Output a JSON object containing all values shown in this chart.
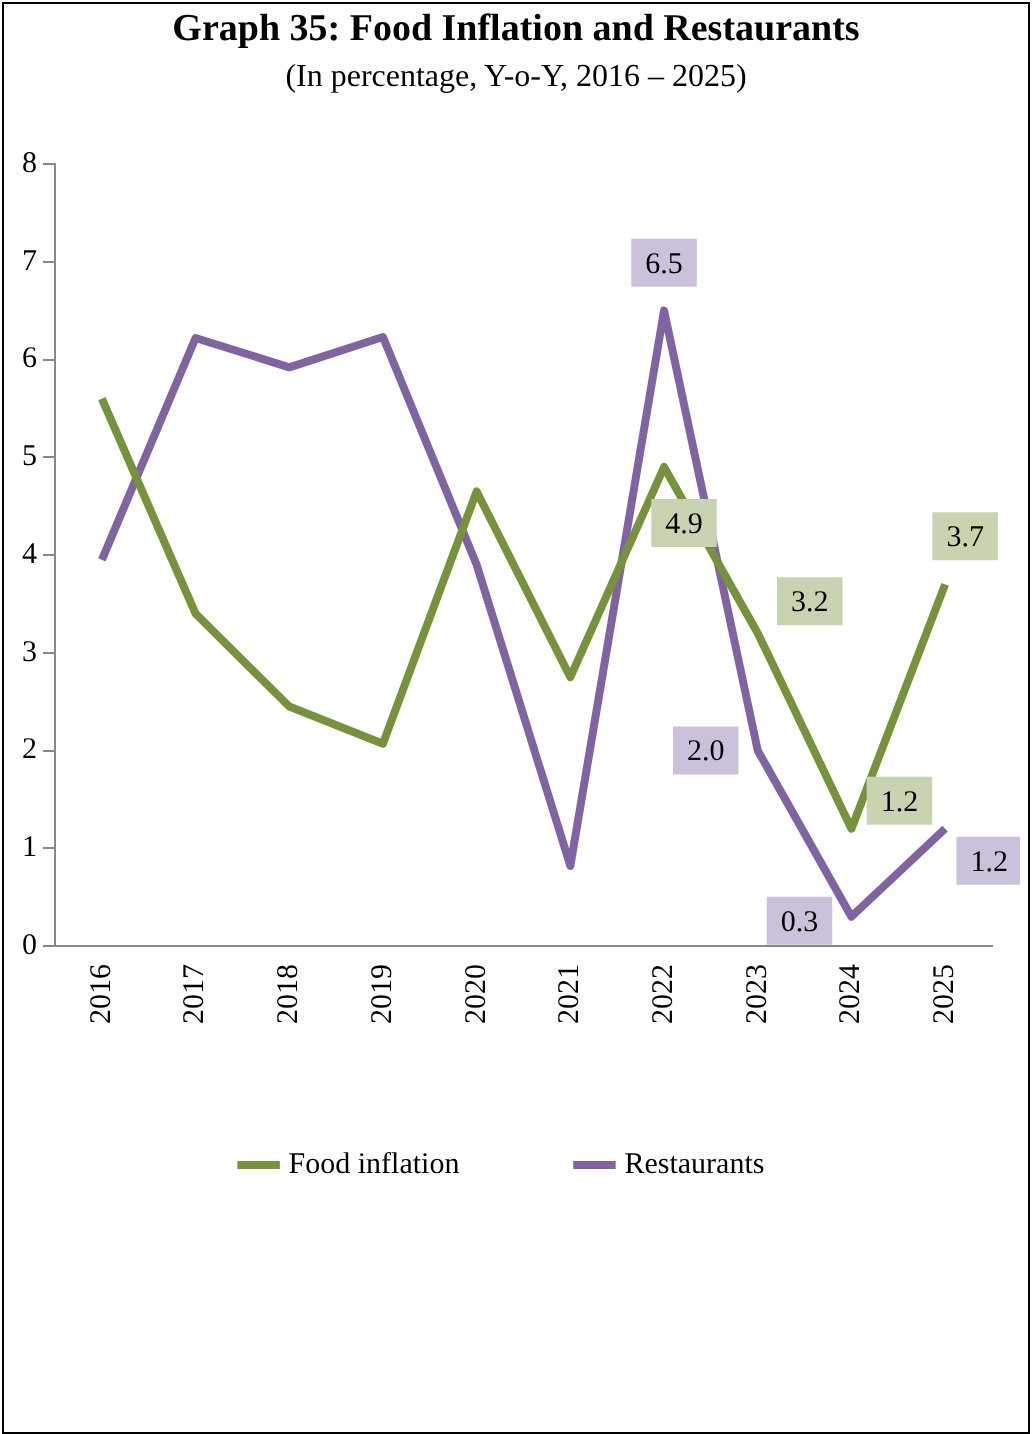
{
  "chart_data": {
    "type": "line",
    "title": "Graph 35: Food Inflation and Restaurants",
    "subtitle": "(In percentage, Y-o-Y, 2016 – 2025)",
    "categories": [
      "2016",
      "2017",
      "2018",
      "2019",
      "2020",
      "2021",
      "2022",
      "2023",
      "2024",
      "2025"
    ],
    "series": [
      {
        "name": "Food inflation",
        "color": "#76923c",
        "values": [
          5.6,
          3.4,
          2.45,
          2.07,
          4.65,
          2.75,
          4.9,
          3.2,
          1.2,
          3.7
        ],
        "value_labels": [
          null,
          null,
          null,
          null,
          null,
          null,
          "4.9",
          "3.2",
          "1.2",
          "3.7"
        ]
      },
      {
        "name": "Restaurants",
        "color": "#8064a2",
        "values": [
          3.95,
          6.22,
          5.92,
          6.23,
          3.9,
          0.82,
          6.5,
          2.0,
          0.3,
          1.2
        ],
        "value_labels": [
          null,
          null,
          null,
          null,
          null,
          null,
          "6.5",
          "2.0",
          "0.3",
          "1.2"
        ]
      }
    ],
    "ylim": [
      0,
      8
    ],
    "yticks": [
      0,
      1,
      2,
      3,
      4,
      5,
      6,
      7,
      8
    ],
    "grid": false,
    "legend": "bottom",
    "marker": "none",
    "line_style": "solid"
  }
}
